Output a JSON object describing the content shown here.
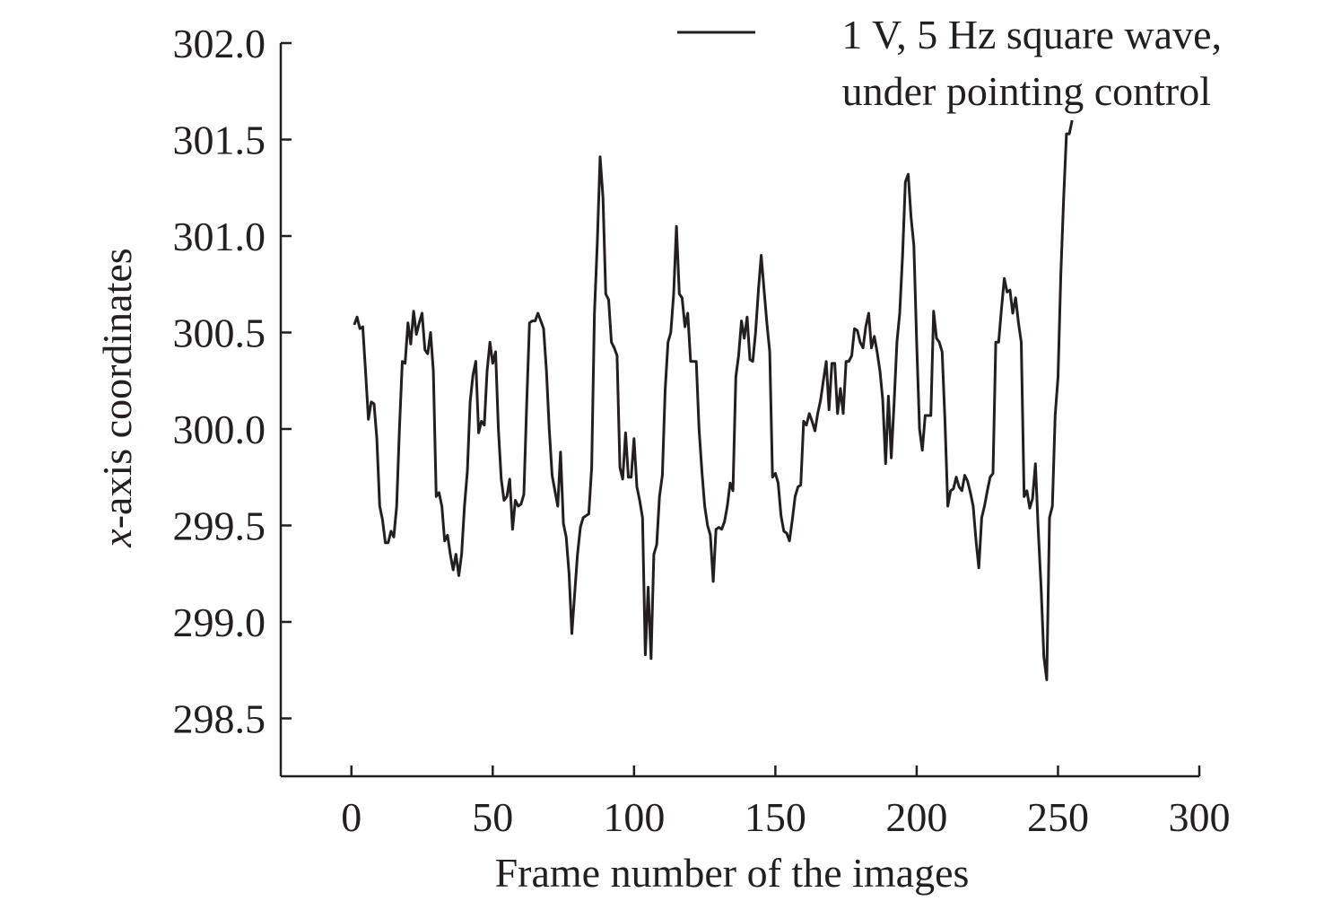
{
  "chart_data": {
    "type": "line",
    "title": "",
    "xlabel": "Frame number of the images",
    "ylabel_var": "x",
    "ylabel_rest": "-axis coordinates",
    "xlim": [
      -25,
      300
    ],
    "ylim": [
      298.2,
      302.0
    ],
    "xticks": [
      0,
      50,
      100,
      150,
      200,
      250,
      300
    ],
    "yticks": [
      298.5,
      299.0,
      299.5,
      300.0,
      300.5,
      301.0,
      301.5,
      302.0
    ],
    "xtick_labels": [
      "0",
      "50",
      "100",
      "150",
      "200",
      "250",
      "300"
    ],
    "ytick_labels": [
      "298.5",
      "299.0",
      "299.5",
      "300.0",
      "300.5",
      "301.0",
      "301.5",
      "302.0"
    ],
    "legend_position": "top-right",
    "grid": false,
    "series": [
      {
        "name_line1": "1 V, 5 Hz square wave,",
        "name_line2": "under pointing control",
        "color": "#231f20",
        "x": [
          1,
          2,
          3,
          4,
          5,
          6,
          7,
          8,
          9,
          10,
          11,
          12,
          13,
          14,
          15,
          16,
          17,
          18,
          19,
          20,
          21,
          22,
          23,
          24,
          25,
          26,
          27,
          28,
          29,
          30,
          31,
          32,
          33,
          34,
          35,
          36,
          37,
          38,
          39,
          40,
          41,
          42,
          43,
          44,
          45,
          46,
          47,
          48,
          49,
          50,
          51,
          52,
          53,
          54,
          55,
          56,
          57,
          58,
          59,
          60,
          61,
          62,
          63,
          64,
          65,
          66,
          67,
          68,
          69,
          70,
          71,
          72,
          73,
          74,
          75,
          76,
          77,
          78,
          79,
          80,
          81,
          82,
          83,
          84,
          85,
          86,
          87,
          88,
          89,
          90,
          91,
          92,
          93,
          94,
          95,
          96,
          97,
          98,
          99,
          100,
          101,
          102,
          103,
          104,
          105,
          106,
          107,
          108,
          109,
          110,
          111,
          112,
          113,
          114,
          115,
          116,
          117,
          118,
          119,
          120,
          121,
          122,
          123,
          124,
          125,
          126,
          127,
          128,
          129,
          130,
          131,
          132,
          133,
          134,
          135,
          136,
          137,
          138,
          139,
          140,
          141,
          142,
          143,
          144,
          145,
          146,
          147,
          148,
          149,
          150,
          151,
          152,
          153,
          154,
          155,
          156,
          157,
          158,
          159,
          160,
          161,
          162,
          163,
          164,
          165,
          166,
          167,
          168,
          169,
          170,
          171,
          172,
          173,
          174,
          175,
          176,
          177,
          178,
          179,
          180,
          181,
          182,
          183,
          184,
          185,
          186,
          187,
          188,
          189,
          190,
          191,
          192,
          193,
          194,
          195,
          196,
          197,
          198,
          199,
          200,
          201,
          202,
          203,
          204,
          205,
          206,
          207,
          208,
          209,
          210,
          211,
          212,
          213,
          214,
          215,
          216,
          217,
          218,
          219,
          220,
          221,
          222,
          223,
          224,
          225,
          226,
          227,
          228,
          229,
          230,
          231,
          232,
          233,
          234,
          235,
          236,
          237,
          238,
          239,
          240,
          241,
          242,
          243,
          244,
          245,
          246,
          247,
          248,
          249,
          250,
          251,
          252,
          253,
          254,
          255
        ],
        "y": [
          300.54,
          300.58,
          300.52,
          300.53,
          300.3,
          300.05,
          300.14,
          300.13,
          299.95,
          299.6,
          299.53,
          299.41,
          299.41,
          299.47,
          299.44,
          299.6,
          300.0,
          300.35,
          300.34,
          300.55,
          300.44,
          300.61,
          300.49,
          300.55,
          300.6,
          300.41,
          300.39,
          300.5,
          300.3,
          299.65,
          299.67,
          299.6,
          299.42,
          299.45,
          299.35,
          299.27,
          299.35,
          299.24,
          299.35,
          299.6,
          299.78,
          300.14,
          300.28,
          300.35,
          299.98,
          300.04,
          300.02,
          300.3,
          300.45,
          300.34,
          300.4,
          300.0,
          299.74,
          299.63,
          299.65,
          299.74,
          299.48,
          299.63,
          299.6,
          299.61,
          299.66,
          300.12,
          300.55,
          300.56,
          300.56,
          300.6,
          300.56,
          300.52,
          300.3,
          300.0,
          299.76,
          299.68,
          299.6,
          299.88,
          299.51,
          299.44,
          299.25,
          298.94,
          299.15,
          299.35,
          299.49,
          299.54,
          299.55,
          299.56,
          299.8,
          300.6,
          300.97,
          301.41,
          301.2,
          300.7,
          300.67,
          300.45,
          300.42,
          300.38,
          299.8,
          299.74,
          299.98,
          299.75,
          299.75,
          299.95,
          299.7,
          299.63,
          299.54,
          298.83,
          299.18,
          298.81,
          299.35,
          299.4,
          299.65,
          299.76,
          300.2,
          300.45,
          300.5,
          300.7,
          301.05,
          300.7,
          300.68,
          300.53,
          300.6,
          300.35,
          300.35,
          300.35,
          300.0,
          299.78,
          299.6,
          299.5,
          299.45,
          299.21,
          299.48,
          299.49,
          299.48,
          299.52,
          299.6,
          299.72,
          299.68,
          300.27,
          300.38,
          300.56,
          300.47,
          300.58,
          300.36,
          300.35,
          300.5,
          300.72,
          300.9,
          300.72,
          300.55,
          300.4,
          299.75,
          299.77,
          299.72,
          299.55,
          299.47,
          299.46,
          299.42,
          299.53,
          299.65,
          299.7,
          299.71,
          300.04,
          300.02,
          300.08,
          300.04,
          299.99,
          300.08,
          300.15,
          300.25,
          300.35,
          300.1,
          300.34,
          300.34,
          300.08,
          300.21,
          300.08,
          300.35,
          300.35,
          300.38,
          300.52,
          300.51,
          300.45,
          300.42,
          300.53,
          300.6,
          300.42,
          300.48,
          300.4,
          300.3,
          300.15,
          299.82,
          300.17,
          299.85,
          300.13,
          300.45,
          300.6,
          300.9,
          301.28,
          301.32,
          301.1,
          300.95,
          300.45,
          300.0,
          299.89,
          300.07,
          300.07,
          300.07,
          300.61,
          300.47,
          300.45,
          300.4,
          300.05,
          299.6,
          299.68,
          299.69,
          299.75,
          299.7,
          299.68,
          299.76,
          299.73,
          299.67,
          299.6,
          299.42,
          299.28,
          299.54,
          299.6,
          299.68,
          299.75,
          299.77,
          300.45,
          300.45,
          300.62,
          300.78,
          300.71,
          300.72,
          300.6,
          300.68,
          300.55,
          300.45,
          299.65,
          299.68,
          299.59,
          299.64,
          299.82,
          299.48,
          299.18,
          298.82,
          298.7,
          299.54,
          299.6,
          300.07,
          300.27,
          300.8,
          301.2,
          301.53,
          301.53,
          301.6
        ]
      }
    ]
  }
}
